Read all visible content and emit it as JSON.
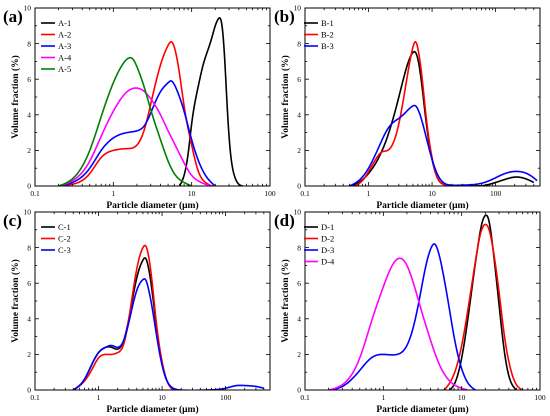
{
  "chart_data": [
    {
      "type": "line",
      "panel_label": "(a)",
      "xlabel": "Particle diameter  (μm)",
      "ylabel": "Volume fraction  (%)",
      "xscale": "log",
      "xlim": [
        0.1,
        100
      ],
      "ylim": [
        0,
        10
      ],
      "xticks": [
        0.1,
        1,
        10,
        100
      ],
      "xtick_labels": [
        "0.1",
        "1",
        "10",
        "100"
      ],
      "yticks": [
        0,
        2,
        4,
        6,
        8,
        10
      ],
      "ytick_labels": [
        "0",
        "2",
        "4",
        "6",
        "8",
        "10"
      ],
      "legend": "top-left",
      "grid": false,
      "series": [
        {
          "name": "A-1",
          "color": "#000000",
          "x": [
            7,
            8,
            9,
            10,
            12,
            14,
            16,
            18,
            20,
            22,
            24,
            26,
            28,
            30,
            35,
            40,
            45
          ],
          "y": [
            0,
            0.6,
            1.8,
            3.5,
            5.5,
            6.8,
            7.6,
            8.3,
            9.0,
            9.4,
            9.2,
            7.6,
            5.0,
            2.8,
            0.6,
            0.1,
            0
          ]
        },
        {
          "name": "A-2",
          "color": "#ff0000",
          "x": [
            0.2,
            0.3,
            0.5,
            0.7,
            1,
            1.5,
            2,
            2.5,
            3,
            4,
            5,
            5.5,
            6,
            7,
            8,
            10,
            12,
            15,
            18
          ],
          "y": [
            0,
            0.1,
            0.7,
            1.6,
            2.0,
            2.1,
            2.3,
            3.2,
            4.6,
            6.8,
            7.9,
            8.1,
            7.8,
            6.3,
            4.5,
            2.3,
            0.9,
            0.2,
            0
          ]
        },
        {
          "name": "A-3",
          "color": "#0000ff",
          "x": [
            0.2,
            0.3,
            0.5,
            0.7,
            1,
            1.5,
            2,
            2.5,
            3,
            4,
            5,
            5.5,
            6,
            7,
            8,
            10,
            12,
            15,
            20
          ],
          "y": [
            0,
            0.2,
            1.0,
            2.0,
            2.7,
            3.0,
            3.1,
            3.4,
            4.1,
            5.3,
            5.8,
            5.9,
            5.7,
            5.0,
            4.2,
            2.6,
            1.5,
            0.6,
            0
          ]
        },
        {
          "name": "A-4",
          "color": "#ff00ff",
          "x": [
            0.2,
            0.3,
            0.5,
            0.7,
            1,
            1.5,
            2,
            2.5,
            3,
            4,
            5,
            6,
            8,
            10,
            12,
            15,
            20
          ],
          "y": [
            0,
            0.3,
            1.4,
            2.8,
            4.2,
            5.3,
            5.5,
            5.3,
            4.9,
            4.0,
            3.1,
            2.4,
            1.3,
            0.6,
            0.3,
            0.1,
            0
          ]
        },
        {
          "name": "A-5",
          "color": "#008000",
          "x": [
            0.2,
            0.3,
            0.5,
            0.7,
            1,
            1.3,
            1.6,
            1.8,
            2,
            2.5,
            3,
            4,
            5,
            6,
            8,
            10
          ],
          "y": [
            0,
            0.4,
            2.0,
            3.9,
            5.8,
            6.8,
            7.2,
            7.1,
            6.7,
            5.5,
            4.3,
            2.6,
            1.4,
            0.7,
            0.2,
            0
          ]
        }
      ]
    },
    {
      "type": "line",
      "panel_label": "(b)",
      "xlabel": "Particle diameter  (μm)",
      "ylabel": "Volume fraction  (%)",
      "xscale": "log",
      "xlim": [
        0.1,
        500
      ],
      "ylim": [
        0,
        10
      ],
      "xticks": [
        0.1,
        1,
        10,
        100
      ],
      "xtick_labels": [
        "0.1",
        "1",
        "10",
        "100"
      ],
      "yticks": [
        0,
        2,
        4,
        6,
        8,
        10
      ],
      "ytick_labels": [
        "0",
        "2",
        "4",
        "6",
        "8",
        "10"
      ],
      "legend": "top-left",
      "grid": false,
      "series": [
        {
          "name": "B-1",
          "color": "#000000",
          "x": [
            0.5,
            0.7,
            1,
            1.5,
            2,
            3,
            4,
            5,
            5.5,
            6,
            7,
            8,
            10,
            12,
            15,
            20,
            40,
            70,
            100,
            150,
            200,
            300,
            400
          ],
          "y": [
            0,
            0.2,
            0.7,
            1.7,
            2.8,
            5.0,
            6.7,
            7.5,
            7.5,
            7.1,
            5.5,
            3.7,
            1.5,
            0.5,
            0.1,
            0,
            0,
            0.05,
            0.2,
            0.4,
            0.5,
            0.4,
            0.2
          ]
        },
        {
          "name": "B-2",
          "color": "#ff0000",
          "x": [
            0.6,
            0.8,
            1,
            1.3,
            1.6,
            2,
            2.5,
            3,
            4,
            5,
            5.5,
            6,
            7,
            8,
            10,
            12,
            15,
            20
          ],
          "y": [
            0,
            0.3,
            0.8,
            1.5,
            1.9,
            2.0,
            2.5,
            3.5,
            6.0,
            7.8,
            8.1,
            7.7,
            6.0,
            4.0,
            1.6,
            0.5,
            0.1,
            0
          ]
        },
        {
          "name": "B-3",
          "color": "#0000ff",
          "x": [
            0.5,
            0.7,
            1,
            1.5,
            2,
            2.5,
            3,
            4,
            5,
            5.5,
            6,
            7,
            8,
            10,
            12,
            15,
            20,
            30,
            50,
            80,
            120,
            180,
            250,
            350,
            450
          ],
          "y": [
            0,
            0.3,
            1.0,
            2.3,
            3.2,
            3.6,
            3.8,
            4.2,
            4.5,
            4.5,
            4.3,
            3.6,
            2.8,
            1.5,
            0.7,
            0.2,
            0.05,
            0.05,
            0.1,
            0.3,
            0.6,
            0.8,
            0.8,
            0.6,
            0.3
          ]
        }
      ]
    },
    {
      "type": "line",
      "panel_label": "(c)",
      "xlabel": "Particle diameter  (μm)",
      "ylabel": "Volume fraction  (%)",
      "xscale": "log",
      "xlim": [
        0.1,
        500
      ],
      "ylim": [
        0,
        10
      ],
      "xticks": [
        0.1,
        1,
        10,
        100
      ],
      "xtick_labels": [
        "0.1",
        "1",
        "10",
        "100"
      ],
      "yticks": [
        0,
        2,
        4,
        6,
        8,
        10
      ],
      "ytick_labels": [
        "0",
        "2",
        "4",
        "6",
        "8",
        "10"
      ],
      "legend": "top-left",
      "grid": false,
      "series": [
        {
          "name": "C-1",
          "color": "#000000",
          "x": [
            0.4,
            0.6,
            0.8,
            1,
            1.3,
            1.6,
            2,
            2.5,
            3,
            4,
            5,
            5.5,
            6,
            7,
            8,
            10,
            12,
            15
          ],
          "y": [
            0,
            0.6,
            1.5,
            2.1,
            2.4,
            2.4,
            2.3,
            2.8,
            4.0,
            6.3,
            7.3,
            7.4,
            7.0,
            5.5,
            3.8,
            1.5,
            0.5,
            0
          ]
        },
        {
          "name": "C-2",
          "color": "#ff0000",
          "x": [
            0.4,
            0.6,
            0.8,
            1,
            1.3,
            1.6,
            2,
            2.5,
            3,
            4,
            5,
            5.5,
            6,
            7,
            8,
            10,
            12,
            15
          ],
          "y": [
            0,
            0.5,
            1.2,
            1.8,
            2.0,
            2.0,
            2.1,
            2.6,
            4.0,
            6.8,
            8.0,
            8.1,
            7.7,
            6.0,
            4.0,
            1.6,
            0.5,
            0
          ]
        },
        {
          "name": "C-3",
          "color": "#0000ff",
          "x": [
            0.4,
            0.6,
            0.8,
            1,
            1.3,
            1.6,
            2,
            2.5,
            3,
            4,
            5,
            5.5,
            6,
            7,
            8,
            10,
            12,
            15,
            20,
            50,
            100,
            150,
            200,
            300,
            400
          ],
          "y": [
            0,
            0.6,
            1.5,
            2.1,
            2.4,
            2.5,
            2.4,
            2.8,
            3.8,
            5.6,
            6.2,
            6.2,
            5.8,
            4.6,
            3.3,
            1.4,
            0.5,
            0.1,
            0,
            0,
            0.1,
            0.25,
            0.25,
            0.2,
            0.1
          ]
        }
      ]
    },
    {
      "type": "line",
      "panel_label": "(d)",
      "xlabel": "Particle diameter  (μm)",
      "ylabel": "Volume fraction  (%)",
      "xscale": "log",
      "xlim": [
        0.1,
        100
      ],
      "ylim": [
        0,
        10
      ],
      "xticks": [
        0.1,
        1,
        10,
        100
      ],
      "xtick_labels": [
        "0.1",
        "1",
        "10",
        "100"
      ],
      "yticks": [
        0,
        2,
        4,
        6,
        8,
        10
      ],
      "ytick_labels": [
        "0",
        "2",
        "4",
        "6",
        "8",
        "10"
      ],
      "legend": "top-left",
      "grid": false,
      "series": [
        {
          "name": "D-1",
          "color": "#000000",
          "x": [
            7,
            8,
            10,
            12,
            14,
            16,
            18,
            20,
            22,
            25,
            30,
            35,
            40,
            50
          ],
          "y": [
            0,
            0.3,
            1.8,
            4.0,
            6.2,
            8.0,
            9.3,
            9.8,
            9.6,
            8.0,
            4.8,
            2.2,
            0.8,
            0
          ]
        },
        {
          "name": "D-2",
          "color": "#ff0000",
          "x": [
            6,
            8,
            10,
            12,
            14,
            16,
            18,
            20,
            22,
            25,
            30,
            35,
            40,
            50,
            60
          ],
          "y": [
            0,
            0.9,
            2.5,
            4.5,
            6.4,
            8.0,
            9.0,
            9.3,
            9.1,
            8.0,
            5.5,
            3.1,
            1.6,
            0.3,
            0
          ]
        },
        {
          "name": "D-3",
          "color": "#0000ff",
          "x": [
            0.2,
            0.3,
            0.5,
            0.7,
            1,
            1.5,
            2,
            2.5,
            3,
            3.5,
            4,
            4.5,
            5,
            6,
            7,
            8,
            10,
            12,
            15
          ],
          "y": [
            0,
            0.2,
            1.1,
            1.8,
            2.0,
            2.0,
            2.5,
            3.8,
            5.5,
            7.0,
            7.9,
            8.2,
            7.8,
            6.2,
            4.5,
            3.0,
            1.2,
            0.4,
            0
          ]
        },
        {
          "name": "D-4",
          "color": "#ff00ff",
          "x": [
            0.2,
            0.3,
            0.5,
            0.7,
            1,
            1.3,
            1.6,
            1.8,
            2,
            2.5,
            3,
            4,
            5,
            6,
            8,
            10,
            12
          ],
          "y": [
            0,
            0.3,
            1.8,
            3.8,
            5.8,
            7.0,
            7.4,
            7.3,
            7.0,
            5.8,
            4.6,
            2.8,
            1.6,
            0.9,
            0.3,
            0.1,
            0
          ]
        }
      ]
    }
  ]
}
